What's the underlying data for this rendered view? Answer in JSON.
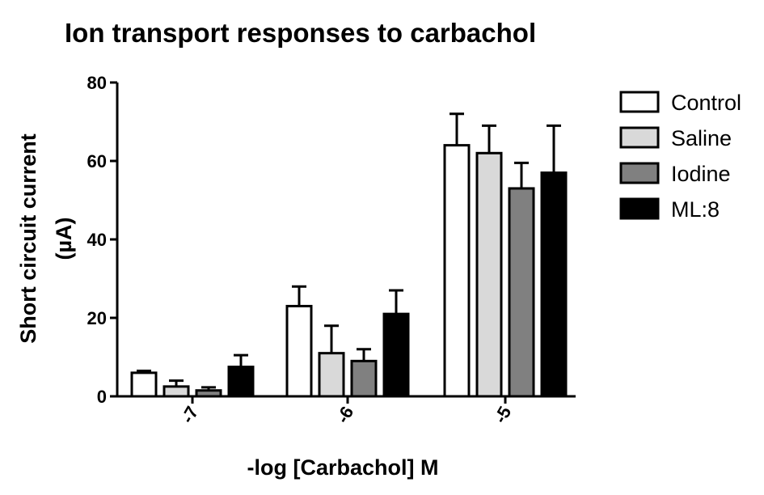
{
  "chart_data": {
    "type": "bar",
    "title": "Ion transport responses to carbachol",
    "xlabel": "-log [Carbachol] M",
    "ylabel_lines": [
      "Short circuit current",
      "(µA)"
    ],
    "categories": [
      "-7",
      "-6",
      "-5"
    ],
    "ylim": [
      0,
      80
    ],
    "yticks": [
      0,
      20,
      40,
      60,
      80
    ],
    "error_bars": "upper",
    "legend_position": "right",
    "series": [
      {
        "name": "Control",
        "color": "#ffffff",
        "values": [
          6,
          23,
          64
        ],
        "errors": [
          0.5,
          5,
          8
        ]
      },
      {
        "name": "Saline",
        "color": "#d9d9d9",
        "values": [
          2.5,
          11,
          62
        ],
        "errors": [
          1.5,
          7,
          7
        ]
      },
      {
        "name": "Iodine",
        "color": "#808080",
        "values": [
          1.5,
          9,
          53
        ],
        "errors": [
          0.8,
          3,
          6.5
        ]
      },
      {
        "name": "ML:8",
        "color": "#000000",
        "values": [
          7.5,
          21,
          57
        ],
        "errors": [
          3,
          6,
          12
        ]
      }
    ]
  }
}
